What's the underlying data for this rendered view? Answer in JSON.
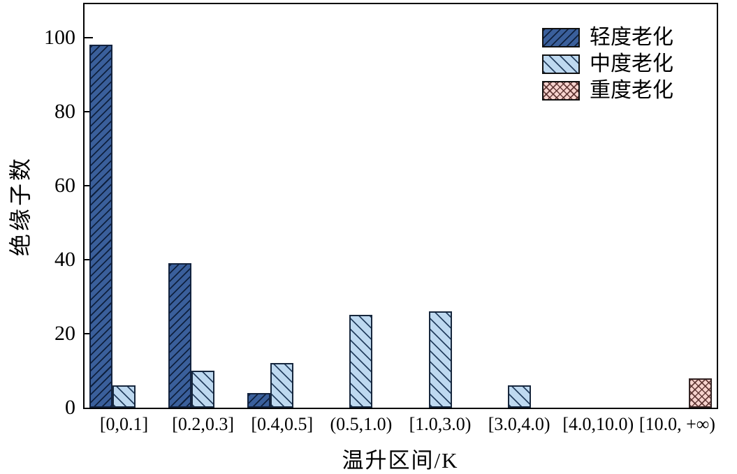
{
  "chart_data": {
    "type": "bar",
    "title": "",
    "xlabel": "温升区间/K",
    "ylabel": "绝缘子数",
    "categories": [
      "[0,0.1]",
      "[0.2,0.3]",
      "[0.4,0.5]",
      "(0.5,1.0)",
      "[1.0,3.0)",
      "[3.0,4.0)",
      "[4.0,10.0)",
      "[10.0, +∞)"
    ],
    "series": [
      {
        "name": "轻度老化",
        "color": "#3a5f9b",
        "hatch": "/",
        "values": [
          98,
          39,
          4,
          null,
          null,
          null,
          null,
          null
        ]
      },
      {
        "name": "中度老化",
        "color": "#bed9f0",
        "hatch": "\\",
        "values": [
          6,
          10,
          12,
          25,
          26,
          6,
          null,
          null
        ]
      },
      {
        "name": "重度老化",
        "color": "#f6d2cd",
        "hatch": "x",
        "values": [
          null,
          null,
          null,
          null,
          null,
          null,
          null,
          8
        ]
      }
    ],
    "yticks": [
      0,
      20,
      40,
      60,
      80,
      100
    ],
    "ylim": [
      0,
      109
    ],
    "grid": false,
    "legend_position": "upper right",
    "axis_color": "#000000",
    "hatch_line_colors": {
      "mild": "#0c1c38",
      "moderate": "#1d3858",
      "severe": "#542a28"
    }
  }
}
